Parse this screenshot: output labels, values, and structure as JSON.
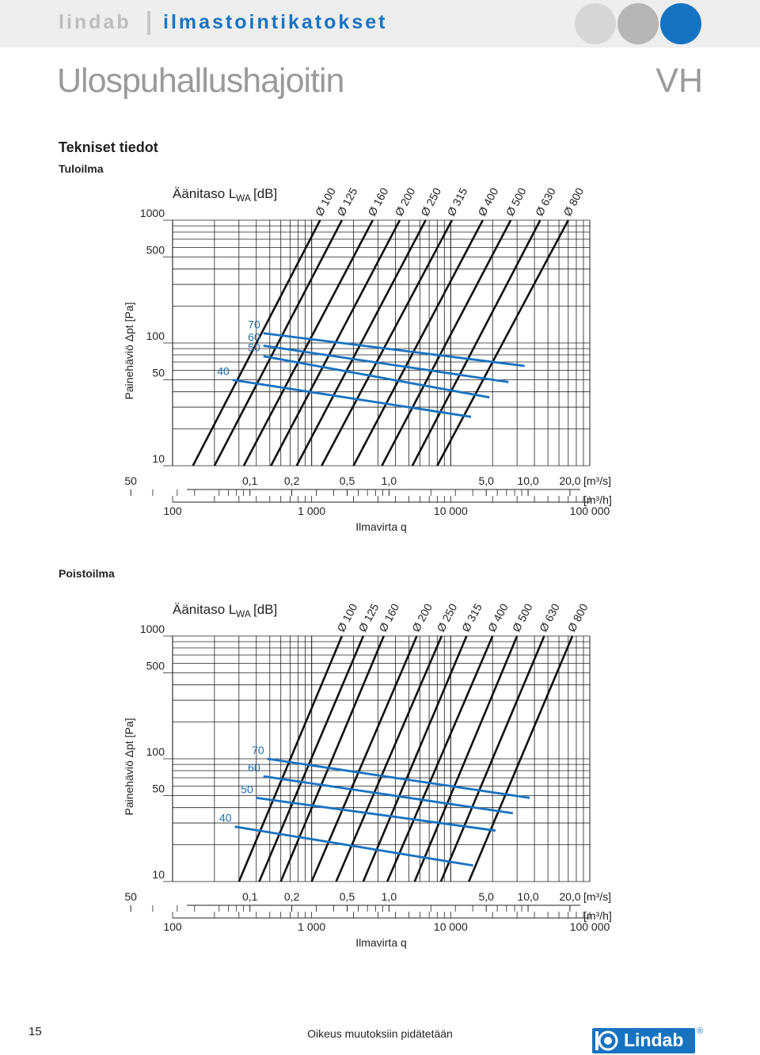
{
  "header": {
    "brand": "lindab",
    "subtitle": "ilmastointikatokset",
    "dot_colors": [
      "#d6d6d6",
      "#b6b6b6",
      "#1673c2"
    ]
  },
  "page_title": "Ulospuhallushajoitin",
  "product_code": "VH",
  "section_title": "Tekniset tiedot",
  "colors": {
    "grid": "#231f20",
    "duct_lines": "#111111",
    "sound_lines": "#1673c2",
    "sound_labels": "#1a6fab",
    "muted_title": "#999a9c",
    "brand_blue": "#1673c2"
  },
  "chart_data": [
    {
      "type": "line",
      "name": "Tuloilma",
      "title_main": "Äänitaso L",
      "title_sub": "WA",
      "title_unit": "[dB]",
      "ylabel": "Painehäviö Δpt [Pa]",
      "xlabel": "Ilmavirta q",
      "x_scale": "log",
      "y_scale": "log",
      "xlim_m3h": [
        100,
        100000
      ],
      "ylim": [
        10,
        1000
      ],
      "y_ticks": [
        "1000",
        "500",
        "100",
        "50",
        "10"
      ],
      "y_tick_values": [
        1000,
        500,
        100,
        50,
        10
      ],
      "x_ticks_m3s": [
        "50",
        "0,1",
        "0,2",
        "0,5",
        "1,0",
        "5,0",
        "10,0",
        "20,0"
      ],
      "x_ticks_m3s_values": [
        0.0139,
        0.1,
        0.2,
        0.5,
        1.0,
        5.0,
        10.0,
        20.0
      ],
      "x_ticks_m3h": [
        "100",
        "1 000",
        "10 000",
        "100 000"
      ],
      "x_ticks_m3h_values": [
        100,
        1000,
        10000,
        100000
      ],
      "unit_m3s": "[m³/s]",
      "unit_m3h": "[m³/h]",
      "duct_series": [
        {
          "name": "Ø 100",
          "q_at_10Pa": 140,
          "q_at_1000Pa": 1150
        },
        {
          "name": "Ø 125",
          "q_at_10Pa": 200,
          "q_at_1000Pa": 1650
        },
        {
          "name": "Ø 160",
          "q_at_10Pa": 325,
          "q_at_1000Pa": 2750
        },
        {
          "name": "Ø 200",
          "q_at_10Pa": 510,
          "q_at_1000Pa": 4300
        },
        {
          "name": "Ø 250",
          "q_at_10Pa": 780,
          "q_at_1000Pa": 6600
        },
        {
          "name": "Ø 315",
          "q_at_10Pa": 1180,
          "q_at_1000Pa": 10200
        },
        {
          "name": "Ø 400",
          "q_at_10Pa": 2000,
          "q_at_1000Pa": 17000
        },
        {
          "name": "Ø 500",
          "q_at_10Pa": 3200,
          "q_at_1000Pa": 27000
        },
        {
          "name": "Ø 630",
          "q_at_10Pa": 5300,
          "q_at_1000Pa": 44000
        },
        {
          "name": "Ø 800",
          "q_at_10Pa": 8000,
          "q_at_1000Pa": 70000
        }
      ],
      "sound_series": [
        {
          "name": "70",
          "points": [
            [
              450,
              120
            ],
            [
              34000,
              65
            ]
          ]
        },
        {
          "name": "60",
          "points": [
            [
              450,
              95
            ],
            [
              26000,
              48
            ]
          ]
        },
        {
          "name": "50",
          "points": [
            [
              450,
              78
            ],
            [
              19000,
              36
            ]
          ]
        },
        {
          "name": "40",
          "points": [
            [
              270,
              50
            ],
            [
              14000,
              25
            ]
          ]
        }
      ]
    },
    {
      "type": "line",
      "name": "Poistoilma",
      "title_main": "Äänitaso L",
      "title_sub": "WA",
      "title_unit": "[dB]",
      "ylabel": "Painehäviö Δpt [Pa]",
      "xlabel": "Ilmavirta q",
      "x_scale": "log",
      "y_scale": "log",
      "xlim_m3h": [
        100,
        100000
      ],
      "ylim": [
        10,
        1000
      ],
      "y_ticks": [
        "1000",
        "500",
        "100",
        "50",
        "10"
      ],
      "y_tick_values": [
        1000,
        500,
        100,
        50,
        10
      ],
      "x_ticks_m3s": [
        "50",
        "0,1",
        "0,2",
        "0,5",
        "1,0",
        "5,0",
        "10,0",
        "20,0"
      ],
      "x_ticks_m3s_values": [
        0.0139,
        0.1,
        0.2,
        0.5,
        1.0,
        5.0,
        10.0,
        20.0
      ],
      "x_ticks_m3h": [
        "100",
        "1 000",
        "10 000",
        "100 000"
      ],
      "x_ticks_m3h_values": [
        100,
        1000,
        10000,
        100000
      ],
      "unit_m3s": "[m³/s]",
      "unit_m3h": "[m³/h]",
      "duct_series": [
        {
          "name": "Ø 100",
          "q_at_10Pa": 300,
          "q_at_1000Pa": 1650
        },
        {
          "name": "Ø 125",
          "q_at_10Pa": 420,
          "q_at_1000Pa": 2350
        },
        {
          "name": "Ø 160",
          "q_at_10Pa": 600,
          "q_at_1000Pa": 3300
        },
        {
          "name": "Ø 200",
          "q_at_10Pa": 1000,
          "q_at_1000Pa": 5700
        },
        {
          "name": "Ø 250",
          "q_at_10Pa": 1500,
          "q_at_1000Pa": 8600
        },
        {
          "name": "Ø 315",
          "q_at_10Pa": 2350,
          "q_at_1000Pa": 13000
        },
        {
          "name": "Ø 400",
          "q_at_10Pa": 3500,
          "q_at_1000Pa": 20000
        },
        {
          "name": "Ø 500",
          "q_at_10Pa": 5500,
          "q_at_1000Pa": 30000
        },
        {
          "name": "Ø 630",
          "q_at_10Pa": 8500,
          "q_at_1000Pa": 47000
        },
        {
          "name": "Ø 800",
          "q_at_10Pa": 13500,
          "q_at_1000Pa": 75000
        }
      ],
      "sound_series": [
        {
          "name": "70",
          "points": [
            [
              480,
              100
            ],
            [
              37000,
              48
            ]
          ]
        },
        {
          "name": "60",
          "points": [
            [
              450,
              72
            ],
            [
              28000,
              36
            ]
          ]
        },
        {
          "name": "50",
          "points": [
            [
              400,
              48
            ],
            [
              21000,
              26
            ]
          ]
        },
        {
          "name": "40",
          "points": [
            [
              280,
              28
            ],
            [
              14500,
              13.5
            ]
          ]
        }
      ]
    }
  ],
  "footer": {
    "page_number": "15",
    "note": "Oikeus muutoksiin pidätetään",
    "logo_text": "Lindab",
    "registered_mark": "®"
  }
}
